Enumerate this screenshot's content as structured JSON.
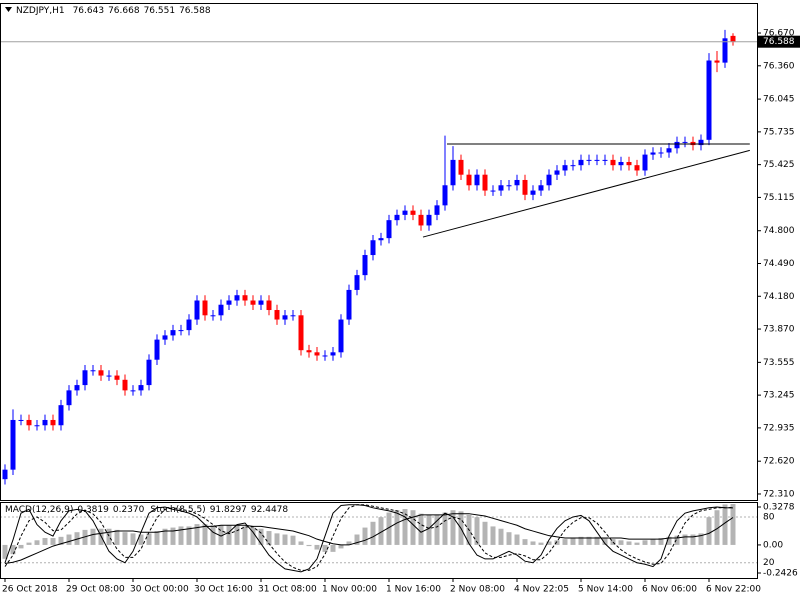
{
  "chart_data": [
    {
      "type": "candlestick",
      "title": "NZDJPY,H1",
      "categories": [
        "26 Oct 2018",
        null,
        null,
        null,
        null,
        null,
        null,
        null,
        "29 Oct 08:00",
        null,
        null,
        null,
        null,
        null,
        null,
        null,
        "30 Oct 00:00",
        null,
        null,
        null,
        null,
        null,
        null,
        null,
        "30 Oct 16:00",
        null,
        null,
        null,
        null,
        null,
        null,
        null,
        "31 Oct 08:00",
        null,
        null,
        null,
        null,
        null,
        null,
        null,
        "1 Nov 00:00",
        null,
        null,
        null,
        null,
        null,
        null,
        null,
        "1 Nov 16:00",
        null,
        null,
        null,
        null,
        null,
        null,
        null,
        "2 Nov 08:00",
        null,
        null,
        null,
        null,
        null,
        null,
        null,
        "4 Nov 22:05",
        null,
        null,
        null,
        null,
        null,
        null,
        null,
        "5 Nov 14:00",
        null,
        null,
        null,
        null,
        null,
        null,
        null,
        "6 Nov 06:00",
        null,
        null,
        null,
        null,
        null,
        null,
        null,
        "6 Nov 22:00",
        null,
        null,
        null
      ],
      "open": [
        72.45,
        72.54,
        73.01,
        73.01,
        72.96,
        72.96,
        73.01,
        72.96,
        73.15,
        73.29,
        73.34,
        73.48,
        73.48,
        73.43,
        73.43,
        73.39,
        73.29,
        73.29,
        73.34,
        73.58,
        73.77,
        73.81,
        73.86,
        73.86,
        73.96,
        74.14,
        74.0,
        74.0,
        74.1,
        74.14,
        74.19,
        74.14,
        74.1,
        74.14,
        74.05,
        73.96,
        74.0,
        74.0,
        73.67,
        73.65,
        73.62,
        73.62,
        73.65,
        73.96,
        74.24,
        74.38,
        74.57,
        74.71,
        74.73,
        74.9,
        74.95,
        74.99,
        74.95,
        74.85,
        74.95,
        75.04,
        75.23,
        75.47,
        75.33,
        75.23,
        75.33,
        75.18,
        75.18,
        75.23,
        75.23,
        75.28,
        75.14,
        75.18,
        75.23,
        75.33,
        75.37,
        75.42,
        75.42,
        75.47,
        75.47,
        75.47,
        75.47,
        75.42,
        75.45,
        75.42,
        75.37,
        75.52,
        75.54,
        75.54,
        75.58,
        75.64,
        75.64,
        75.61,
        75.66,
        76.41,
        76.39,
        76.643
      ],
      "high": [
        72.59,
        73.11,
        73.06,
        73.06,
        73.01,
        73.06,
        73.06,
        73.2,
        73.34,
        73.39,
        73.53,
        73.53,
        73.53,
        73.48,
        73.48,
        73.44,
        73.34,
        73.39,
        73.63,
        73.82,
        73.86,
        73.91,
        73.91,
        74.01,
        74.19,
        74.19,
        74.05,
        74.15,
        74.19,
        74.24,
        74.24,
        74.19,
        74.19,
        74.19,
        74.1,
        74.05,
        74.05,
        74.05,
        73.72,
        73.7,
        73.67,
        73.7,
        74.01,
        74.29,
        74.43,
        74.62,
        74.76,
        74.78,
        74.95,
        75.0,
        75.04,
        75.04,
        75.0,
        75.0,
        75.09,
        75.7,
        75.6,
        75.52,
        75.38,
        75.38,
        75.38,
        75.23,
        75.28,
        75.28,
        75.33,
        75.33,
        75.23,
        75.28,
        75.38,
        75.42,
        75.47,
        75.47,
        75.52,
        75.52,
        75.52,
        75.52,
        75.52,
        75.5,
        75.5,
        75.47,
        75.57,
        75.59,
        75.59,
        75.63,
        75.69,
        75.69,
        75.69,
        75.71,
        76.48,
        76.5,
        76.7,
        76.668
      ],
      "low": [
        72.4,
        72.49,
        72.96,
        72.91,
        72.91,
        72.91,
        72.91,
        72.91,
        73.1,
        73.24,
        73.29,
        73.43,
        73.38,
        73.38,
        73.34,
        73.24,
        73.24,
        73.24,
        73.29,
        73.53,
        73.72,
        73.76,
        73.81,
        73.81,
        73.91,
        73.95,
        73.95,
        73.95,
        74.05,
        74.09,
        74.09,
        74.05,
        74.05,
        74.0,
        73.91,
        73.91,
        73.95,
        73.62,
        73.6,
        73.57,
        73.57,
        73.57,
        73.6,
        73.91,
        74.19,
        74.33,
        74.52,
        74.66,
        74.68,
        74.85,
        74.9,
        74.9,
        74.8,
        74.8,
        74.9,
        74.99,
        75.18,
        75.28,
        75.18,
        75.18,
        75.13,
        75.13,
        75.13,
        75.18,
        75.18,
        75.09,
        75.09,
        75.13,
        75.18,
        75.28,
        75.32,
        75.37,
        75.37,
        75.42,
        75.42,
        75.42,
        75.37,
        75.37,
        75.37,
        75.32,
        75.32,
        75.47,
        75.49,
        75.49,
        75.53,
        75.59,
        75.56,
        75.56,
        75.61,
        76.3,
        76.34,
        76.551
      ],
      "close": [
        72.54,
        73.01,
        73.01,
        72.96,
        72.96,
        73.01,
        72.96,
        73.15,
        73.29,
        73.34,
        73.48,
        73.48,
        73.43,
        73.43,
        73.39,
        73.29,
        73.29,
        73.34,
        73.58,
        73.77,
        73.81,
        73.86,
        73.86,
        73.96,
        74.14,
        74.0,
        74.0,
        74.1,
        74.14,
        74.19,
        74.14,
        74.1,
        74.14,
        74.05,
        73.96,
        74.0,
        74.0,
        73.67,
        73.65,
        73.62,
        73.62,
        73.65,
        73.96,
        74.24,
        74.38,
        74.57,
        74.71,
        74.73,
        74.9,
        74.95,
        74.99,
        74.95,
        74.85,
        74.95,
        75.04,
        75.23,
        75.47,
        75.33,
        75.23,
        75.33,
        75.18,
        75.18,
        75.23,
        75.23,
        75.28,
        75.14,
        75.18,
        75.23,
        75.33,
        75.37,
        75.42,
        75.42,
        75.47,
        75.47,
        75.47,
        75.47,
        75.42,
        75.45,
        75.42,
        75.37,
        75.52,
        75.54,
        75.54,
        75.58,
        75.64,
        75.64,
        75.61,
        75.66,
        76.41,
        76.39,
        76.62,
        76.588
      ],
      "up_color": "#0000ff",
      "down_color": "#ff0000",
      "ylim": [
        72.253,
        76.954
      ],
      "yticks": [
        {
          "value": 76.67,
          "label": "76.670"
        },
        {
          "value": 76.36,
          "label": "76.360"
        },
        76.045,
        75.735,
        75.425,
        75.115,
        {
          "value": 74.8,
          "label": "74.800"
        },
        {
          "value": 74.49,
          "label": "74.490"
        },
        {
          "value": 74.18,
          "label": "74.180"
        },
        {
          "value": 73.87,
          "label": "73.870"
        },
        73.555,
        73.245,
        72.935,
        {
          "value": 72.62,
          "label": "72.620"
        },
        {
          "value": 72.31,
          "label": "72.310"
        }
      ],
      "trendlines": [
        {
          "x": [
            55.25,
            93.1
          ],
          "y": [
            75.62,
            75.62
          ]
        },
        {
          "x": [
            52.25,
            93.1
          ],
          "y": [
            74.74,
            75.56
          ]
        }
      ]
    },
    {
      "type": "indicator",
      "ylim": [
        -0.2858,
        0.3624
      ],
      "yticks": [
        0.3278,
        {
          "value": 0,
          "label": "0.00"
        },
        -0.2426
      ],
      "y2lim": [
        0,
        98.3
      ],
      "y2ticks": [
        80,
        20
      ],
      "macd": {
        "name": "MACD(12,26,9)",
        "histogram": {
          "color": "#b4b4b4",
          "values": [
            -0.12,
            -0.08,
            -0.03,
            0.02,
            0.04,
            0.06,
            0.06,
            0.07,
            0.09,
            0.11,
            0.13,
            0.14,
            0.14,
            0.14,
            0.13,
            0.11,
            0.1,
            0.09,
            0.1,
            0.12,
            0.14,
            0.15,
            0.16,
            0.16,
            0.18,
            0.18,
            0.17,
            0.17,
            0.17,
            0.17,
            0.16,
            0.15,
            0.14,
            0.12,
            0.1,
            0.09,
            0.08,
            0.03,
            -0.01,
            -0.04,
            -0.06,
            -0.06,
            -0.03,
            0.03,
            0.09,
            0.15,
            0.2,
            0.24,
            0.28,
            0.3,
            0.31,
            0.3,
            0.27,
            0.26,
            0.26,
            0.28,
            0.3,
            0.29,
            0.26,
            0.24,
            0.2,
            0.16,
            0.14,
            0.11,
            0.09,
            0.05,
            0.03,
            0.02,
            0.03,
            0.04,
            0.05,
            0.06,
            0.07,
            0.07,
            0.07,
            0.06,
            0.05,
            0.04,
            0.03,
            0.02,
            0.04,
            0.05,
            0.06,
            0.07,
            0.08,
            0.09,
            0.09,
            0.1,
            0.24,
            0.3,
            0.35,
            0.3819
          ]
        },
        "signal": {
          "color": "#000000",
          "values": [
            -0.16,
            -0.15,
            -0.13,
            -0.1,
            -0.07,
            -0.04,
            -0.01,
            0.01,
            0.03,
            0.05,
            0.07,
            0.09,
            0.1,
            0.11,
            0.12,
            0.12,
            0.12,
            0.11,
            0.11,
            0.11,
            0.12,
            0.12,
            0.13,
            0.14,
            0.15,
            0.16,
            0.16,
            0.17,
            0.17,
            0.17,
            0.17,
            0.16,
            0.16,
            0.15,
            0.14,
            0.13,
            0.12,
            0.1,
            0.08,
            0.05,
            0.03,
            0.01,
            0.0,
            0.0,
            0.02,
            0.04,
            0.07,
            0.11,
            0.15,
            0.19,
            0.22,
            0.24,
            0.26,
            0.26,
            0.26,
            0.26,
            0.27,
            0.27,
            0.27,
            0.26,
            0.25,
            0.23,
            0.21,
            0.19,
            0.17,
            0.14,
            0.12,
            0.1,
            0.08,
            0.07,
            0.06,
            0.06,
            0.06,
            0.06,
            0.06,
            0.06,
            0.06,
            0.06,
            0.05,
            0.05,
            0.05,
            0.05,
            0.05,
            0.06,
            0.06,
            0.07,
            0.07,
            0.08,
            0.1,
            0.14,
            0.19,
            0.237
          ],
          "value_labels": [
            null,
            null,
            null,
            null,
            null,
            null,
            null,
            null,
            null,
            null,
            null,
            null,
            null,
            null,
            null,
            null,
            null,
            null,
            null,
            null,
            null,
            null,
            null,
            null,
            null,
            null,
            null,
            null,
            null,
            null,
            null,
            null,
            null,
            null,
            null,
            null,
            null,
            null,
            null,
            null,
            null,
            null,
            null,
            null,
            null,
            null,
            null,
            null,
            null,
            null,
            null,
            null,
            null,
            null,
            null,
            null,
            null,
            null,
            null,
            null,
            null,
            null,
            null,
            null,
            null,
            null,
            null,
            null,
            null,
            null,
            null,
            null,
            null,
            null,
            null,
            null,
            null,
            null,
            null,
            null,
            null,
            null,
            null,
            null,
            null,
            null,
            null,
            null,
            null,
            null,
            null,
            "0.2370"
          ]
        }
      },
      "stoch": {
        "name": "Stoch(8,5,5)",
        "axis": "y2",
        "main": {
          "color": "#000000",
          "values": [
            20,
            50,
            85,
            90,
            70,
            60,
            55,
            75,
            88,
            90,
            88,
            75,
            55,
            35,
            25,
            20,
            35,
            60,
            85,
            92,
            93,
            90,
            88,
            85,
            80,
            70,
            60,
            55,
            60,
            70,
            72,
            60,
            45,
            30,
            20,
            12,
            10,
            8,
            12,
            25,
            55,
            85,
            95,
            96,
            96,
            95,
            92,
            90,
            88,
            85,
            80,
            70,
            60,
            65,
            75,
            85,
            80,
            65,
            45,
            30,
            25,
            25,
            30,
            35,
            30,
            22,
            20,
            30,
            50,
            65,
            75,
            80,
            82,
            75,
            60,
            45,
            35,
            30,
            25,
            20,
            18,
            15,
            25,
            55,
            75,
            85,
            88,
            90,
            92,
            93,
            92,
            91.8297
          ]
        },
        "signal": {
          "color": "#000000",
          "dash": true,
          "values": [
            15,
            30,
            55,
            75,
            80,
            73,
            62,
            63,
            73,
            84,
            89,
            84,
            73,
            55,
            38,
            27,
            27,
            38,
            60,
            79,
            90,
            92,
            90,
            88,
            84,
            78,
            70,
            62,
            58,
            62,
            67,
            67,
            59,
            45,
            32,
            21,
            14,
            10,
            10,
            15,
            31,
            55,
            78,
            92,
            96,
            96,
            94,
            92,
            90,
            88,
            84,
            78,
            70,
            65,
            67,
            75,
            80,
            77,
            63,
            47,
            33,
            27,
            27,
            30,
            32,
            29,
            24,
            24,
            33,
            48,
            63,
            73,
            79,
            79,
            72,
            60,
            47,
            37,
            30,
            25,
            21,
            18,
            19,
            32,
            52,
            72,
            83,
            88,
            90,
            92,
            92,
            92.4478
          ]
        }
      }
    }
  ]
}
